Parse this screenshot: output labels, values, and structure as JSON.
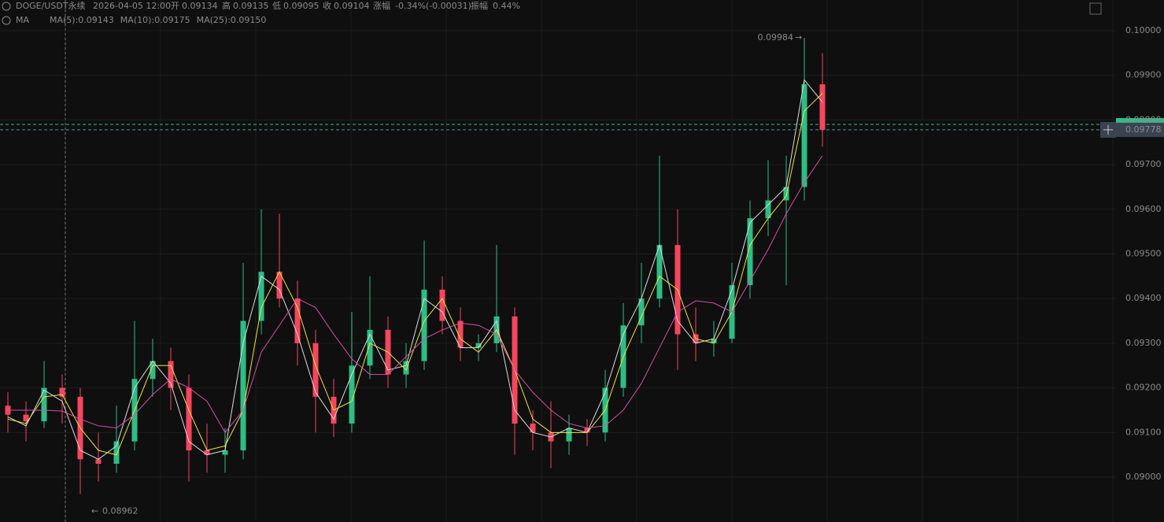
{
  "chart_data": {
    "type": "candlestick",
    "header": {
      "symbol": "DOGE/USDT永续",
      "time": "2026-04-05 12:00",
      "open_label": "开",
      "open": 0.09134,
      "high_label": "高",
      "high": 0.09135,
      "low_label": "低",
      "low": 0.09095,
      "close_label": "收",
      "close": 0.09104,
      "change_label": "涨幅",
      "change": "-0.34%(-0.00031)",
      "amplitude_label": "振幅",
      "amplitude": "0.44%"
    },
    "indicator": "MA",
    "up_color": "#2ebd85",
    "down_color": "#f6465d",
    "open": [
      0.0916,
      0.0914,
      0.09125,
      0.092,
      0.0918,
      0.0904,
      0.0903,
      0.0908,
      0.0922,
      0.0926,
      0.092,
      0.0906,
      0.0905,
      0.0906,
      0.0935,
      0.0946,
      0.094,
      0.093,
      0.0918,
      0.0912,
      0.0925,
      0.0933,
      0.0923,
      0.0926,
      0.0942,
      0.0935,
      0.0929,
      0.093,
      0.0936,
      0.0912,
      0.091,
      0.0908,
      0.0911,
      0.091,
      0.092,
      0.0934,
      0.094,
      0.0952,
      0.0932,
      0.093,
      0.0931,
      0.0943,
      0.0958,
      0.0962,
      0.0965,
      0.0988
    ],
    "high": [
      0.0919,
      0.0917,
      0.0926,
      0.0923,
      0.092,
      0.091,
      0.0916,
      0.0935,
      0.0931,
      0.0929,
      0.0923,
      0.0912,
      0.0911,
      0.0948,
      0.096,
      0.0959,
      0.0944,
      0.0933,
      0.0922,
      0.0937,
      0.0945,
      0.0936,
      0.093,
      0.0953,
      0.0945,
      0.0938,
      0.0932,
      0.0952,
      0.0938,
      0.0915,
      0.0917,
      0.0914,
      0.0913,
      0.0924,
      0.0939,
      0.0948,
      0.0972,
      0.096,
      0.0938,
      0.0935,
      0.0948,
      0.0962,
      0.0971,
      0.0972,
      0.09984,
      0.0995
    ],
    "low": [
      0.091,
      0.0908,
      0.0911,
      0.0912,
      0.08962,
      0.0899,
      0.0901,
      0.0906,
      0.0918,
      0.0915,
      0.0899,
      0.0901,
      0.0901,
      0.0904,
      0.0932,
      0.0938,
      0.0925,
      0.091,
      0.0909,
      0.091,
      0.0922,
      0.092,
      0.092,
      0.0924,
      0.0932,
      0.0926,
      0.0926,
      0.0928,
      0.0905,
      0.0906,
      0.0902,
      0.0905,
      0.0907,
      0.0908,
      0.0918,
      0.093,
      0.0938,
      0.0924,
      0.0926,
      0.0927,
      0.093,
      0.094,
      0.0954,
      0.0943,
      0.0962,
      0.0974
    ],
    "close": [
      0.0914,
      0.09125,
      0.092,
      0.0918,
      0.0904,
      0.0903,
      0.0908,
      0.0922,
      0.0926,
      0.092,
      0.0906,
      0.0905,
      0.0906,
      0.0935,
      0.0946,
      0.094,
      0.093,
      0.0918,
      0.0912,
      0.0925,
      0.0933,
      0.0923,
      0.0926,
      0.0942,
      0.0935,
      0.0929,
      0.093,
      0.0936,
      0.0912,
      0.091,
      0.0908,
      0.0911,
      0.091,
      0.092,
      0.0934,
      0.094,
      0.0952,
      0.0932,
      0.093,
      0.0931,
      0.0943,
      0.0958,
      0.0962,
      0.0965,
      0.0988,
      0.09778
    ],
    "series": [
      {
        "name": "MA(5)",
        "legend_label": "MA(5):0.09143",
        "color": "#dcdcdc",
        "values": [
          0.09135,
          0.09115,
          0.09195,
          0.0917,
          0.0906,
          0.0904,
          0.0907,
          0.092,
          0.0926,
          0.0921,
          0.0908,
          0.0905,
          0.0906,
          0.093,
          0.0945,
          0.0942,
          0.0932,
          0.0919,
          0.0913,
          0.0923,
          0.0932,
          0.0924,
          0.0925,
          0.094,
          0.0937,
          0.0929,
          0.0929,
          0.0935,
          0.0915,
          0.091,
          0.0909,
          0.0911,
          0.091,
          0.0919,
          0.0932,
          0.094,
          0.0952,
          0.0935,
          0.093,
          0.0931,
          0.0942,
          0.0957,
          0.0961,
          0.0965,
          0.0989,
          0.0984
        ]
      },
      {
        "name": "MA(10)",
        "legend_label": "MA(10):0.09175",
        "color": "#f0e442",
        "values": [
          0.0913,
          0.0912,
          0.0918,
          0.09185,
          0.0911,
          0.0906,
          0.0905,
          0.0915,
          0.0925,
          0.0925,
          0.0915,
          0.0906,
          0.0907,
          0.0915,
          0.0938,
          0.0946,
          0.0938,
          0.0925,
          0.0915,
          0.0917,
          0.093,
          0.0928,
          0.0924,
          0.0935,
          0.094,
          0.0931,
          0.0928,
          0.0933,
          0.0924,
          0.0913,
          0.091,
          0.091,
          0.091,
          0.0915,
          0.0927,
          0.0936,
          0.0945,
          0.0942,
          0.0931,
          0.093,
          0.0937,
          0.0952,
          0.0958,
          0.0963,
          0.0982,
          0.0986
        ]
      },
      {
        "name": "MA(25)",
        "legend_label": "MA(25):0.09150",
        "color": "#d64ea8",
        "values": [
          0.0915,
          0.0915,
          0.0915,
          0.09148,
          0.0913,
          0.09115,
          0.0911,
          0.0914,
          0.09185,
          0.0922,
          0.092,
          0.0917,
          0.091,
          0.0915,
          0.0928,
          0.0934,
          0.094,
          0.0938,
          0.0932,
          0.09265,
          0.0923,
          0.0923,
          0.0927,
          0.0931,
          0.0933,
          0.09345,
          0.0934,
          0.0932,
          0.0924,
          0.0919,
          0.0915,
          0.0912,
          0.0911,
          0.09115,
          0.0915,
          0.0921,
          0.0929,
          0.0937,
          0.09395,
          0.0939,
          0.0937,
          0.0944,
          0.0951,
          0.0959,
          0.0966,
          0.0972
        ]
      }
    ],
    "ylim": [
      0.088995,
      0.100688
    ],
    "yticks": [
      {
        "value": 0.09,
        "label": "0.09000"
      },
      {
        "value": 0.091,
        "label": "0.09100"
      },
      {
        "value": 0.092,
        "label": "0.09200"
      },
      {
        "value": 0.093,
        "label": "0.09300"
      },
      {
        "value": 0.094,
        "label": "0.09400"
      },
      {
        "value": 0.095,
        "label": "0.09500"
      },
      {
        "value": 0.096,
        "label": "0.09600"
      },
      {
        "value": 0.097,
        "label": "0.09700"
      },
      {
        "value": 0.098,
        "label": "0.09800"
      },
      {
        "value": 0.099,
        "label": "0.09900"
      },
      {
        "value": 0.1,
        "label": "0.10000"
      }
    ],
    "last_price": 0.09778,
    "max_marker": {
      "value": 0.09984,
      "arrow": "→"
    },
    "min_marker": {
      "value": 0.08962,
      "arrow": "←"
    },
    "grid": true
  }
}
